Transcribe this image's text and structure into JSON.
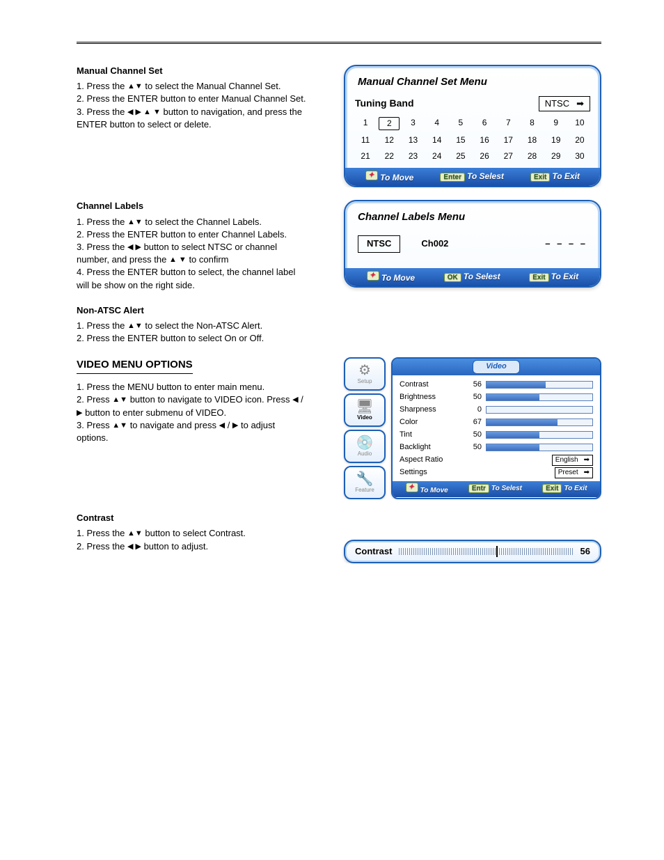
{
  "steps": {
    "manual": {
      "title": "Manual Channel Set",
      "line1_a": "1. Press the ",
      "line1_b": " to select the Manual Channel Set.",
      "line2": "2. Press the ENTER button to enter Manual Channel Set.",
      "line3_a": "3. Press the ",
      "line3_b": " button to navigation, and press the ENTER button to select or delete."
    },
    "labels": {
      "title": "Channel Labels",
      "line1_a": "1. Press the ",
      "line1_b": " to select the Channel Labels.",
      "line2": "2. Press the ENTER button to enter Channel Labels.",
      "line3_a": "3. Press the ",
      "line3_b": " button to select NTSC or channel number, and press the ",
      "line3_c": " to confirm",
      "line4": "4. Press the ENTER button to select, the channel label will be show on the right side."
    },
    "nonatsc": {
      "title": "Non-ATSC Alert",
      "line1_a": "1. Press the ",
      "line1_b": " to select the Non-ATSC Alert.",
      "line2": "2. Press the ENTER button to select On or Off."
    },
    "videohead": "VIDEO MENU OPTIONS",
    "video": {
      "line1": "1. Press the MENU button to enter main menu.",
      "line2_a": "2. Press ",
      "line2_b": " button to navigate to VIDEO icon. Press ",
      "line2_c": " button to enter submenu of VIDEO.",
      "line3_a": "3. Press ",
      "line3_b": " to navigate and press ",
      "line3_c": " to adjust options."
    },
    "contrast": {
      "title": "Contrast",
      "line1_a": "1. Press the ",
      "line1_b": " button to select Contrast.",
      "line2_a": "2. Press the ",
      "line2_b": " button to adjust."
    }
  },
  "osd_manual": {
    "title": "Manual Channel Set Menu",
    "band_label": "Tuning Band",
    "band_value": "NTSC",
    "channels": [
      1,
      2,
      3,
      4,
      5,
      6,
      7,
      8,
      9,
      10,
      11,
      12,
      13,
      14,
      15,
      16,
      17,
      18,
      19,
      20,
      21,
      22,
      23,
      24,
      25,
      26,
      27,
      28,
      29,
      30
    ],
    "selected": 2,
    "footer": {
      "move": "To Move",
      "enter_btn": "Enter",
      "select": "To Selest",
      "exit_btn": "Exit",
      "exit": "To Exit"
    }
  },
  "osd_labels": {
    "title": "Channel Labels Menu",
    "band": "NTSC",
    "ch": "Ch002",
    "dashes": "– – – –",
    "footer": {
      "move": "To Move",
      "ok_btn": "OK",
      "select": "To Selest",
      "exit_btn": "Exit",
      "exit": "To Exit"
    }
  },
  "osd_video": {
    "tab": "Video",
    "sidebar": [
      {
        "icon": "⚙",
        "label": "Setup",
        "color": "#888"
      },
      {
        "icon": "🖥",
        "label": "Video",
        "color": "#000",
        "active": true
      },
      {
        "icon": "💿",
        "label": "Audio",
        "color": "#888"
      },
      {
        "icon": "🔧",
        "label": "Feature",
        "color": "#888"
      }
    ],
    "rows": [
      {
        "label": "Contrast",
        "val": 56,
        "max": 100,
        "type": "bar"
      },
      {
        "label": "Brightness",
        "val": 50,
        "max": 100,
        "type": "bar"
      },
      {
        "label": "Sharpness",
        "val": 0,
        "max": 100,
        "type": "bar"
      },
      {
        "label": "Color",
        "val": 67,
        "max": 100,
        "type": "bar"
      },
      {
        "label": "Tint",
        "val": 50,
        "max": 100,
        "type": "bar"
      },
      {
        "label": "Backlight",
        "val": 50,
        "max": 100,
        "type": "bar"
      },
      {
        "label": "Aspect Ratio",
        "type": "select",
        "value": "English"
      },
      {
        "label": "Settings",
        "type": "select",
        "value": "Preset"
      }
    ],
    "footer": {
      "move": "To Move",
      "enter_btn": "Entr",
      "select": "To Selest",
      "exit_btn": "Exit",
      "exit": "To Exit"
    }
  },
  "osd_contrast_bar": {
    "label": "Contrast",
    "value": 56,
    "max": 100
  }
}
